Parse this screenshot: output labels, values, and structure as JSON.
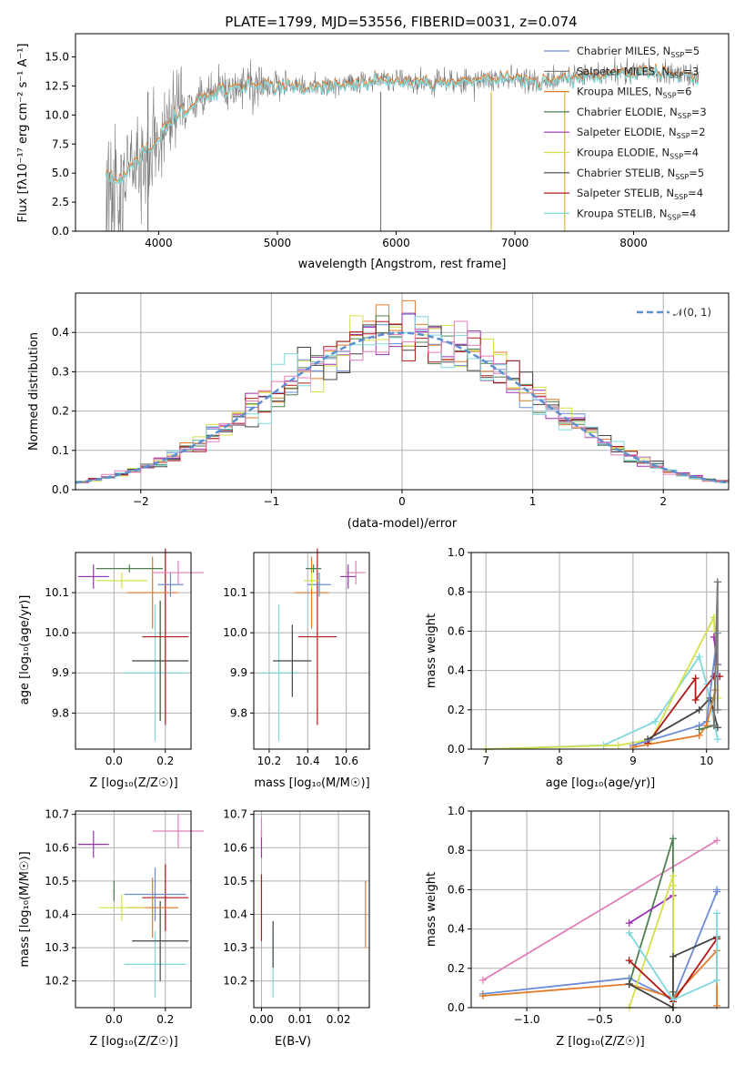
{
  "colors": {
    "chabrier_miles": "#6b8dd6",
    "salpeter_miles": "#7a7a7a",
    "kroupa_miles": "#e07b2a",
    "chabrier_elodie": "#4f7f4f",
    "salpeter_elodie": "#9b30b0",
    "kroupa_elodie": "#d4e04a",
    "chabrier_stelib": "#444444",
    "salpeter_stelib": "#b01818",
    "kroupa_stelib": "#7fd8dc",
    "pink": "#e07fb8"
  },
  "chart_data": [
    {
      "type": "line",
      "title": "PLATE=1799, MJD=53556, FIBERID=0031, z=0.074",
      "xlabel": "wavelength [Angstrom, rest frame]",
      "ylabel": "Flux [fλ10⁻¹⁷ erg cm⁻² s⁻¹ A⁻¹]",
      "xlim": [
        3300,
        8800
      ],
      "ylim": [
        0,
        17
      ],
      "xticks": [
        "4000",
        "5000",
        "6000",
        "7000",
        "8000"
      ],
      "yticks": [
        "0.0",
        "2.5",
        "5.0",
        "7.5",
        "10.0",
        "12.5",
        "15.0"
      ],
      "grid": false,
      "legend_position": "top-right",
      "legend": [
        "Chabrier MILES, N_SSP=5",
        "Salpeter MILES, N_SSP=3",
        "Kroupa MILES, N_SSP=6",
        "Chabrier ELODIE, N_SSP=3",
        "Salpeter ELODIE, N_SSP=2",
        "Kroupa ELODIE, N_SSP=4",
        "Chabrier STELIB, N_SSP=5",
        "Salpeter STELIB, N_SSP=4",
        "Kroupa STELIB, N_SSP=4"
      ],
      "spectrum_continuum": [
        [
          3550,
          5.0
        ],
        [
          3650,
          4.5
        ],
        [
          3750,
          5.5
        ],
        [
          3850,
          6.5
        ],
        [
          3950,
          7.5
        ],
        [
          4050,
          9.0
        ],
        [
          4150,
          10.0
        ],
        [
          4250,
          10.5
        ],
        [
          4350,
          11.5
        ],
        [
          4500,
          12.0
        ],
        [
          4700,
          12.5
        ],
        [
          5000,
          12.6
        ],
        [
          5200,
          12.3
        ],
        [
          5500,
          12.7
        ],
        [
          5800,
          12.8
        ],
        [
          6000,
          13.0
        ],
        [
          6300,
          12.8
        ],
        [
          6600,
          13.0
        ],
        [
          6900,
          13.2
        ],
        [
          7200,
          13.0
        ],
        [
          7500,
          13.2
        ],
        [
          7800,
          13.6
        ],
        [
          8100,
          13.8
        ],
        [
          8400,
          13.5
        ],
        [
          8550,
          13.2
        ]
      ]
    },
    {
      "type": "histogram",
      "xlabel": "(data-model)/error",
      "ylabel": "Normed distribution",
      "xlim": [
        -2.5,
        2.5
      ],
      "ylim": [
        0,
        0.5
      ],
      "xticks": [
        "−2",
        "−1",
        "0",
        "1",
        "2"
      ],
      "yticks": [
        "0.0",
        "0.1",
        "0.2",
        "0.3",
        "0.4"
      ],
      "grid": true,
      "legend_position": "top-right",
      "reference_label": "𝒩(0, 1)",
      "bin_width": 0.1
    },
    {
      "type": "scatter",
      "xlabel": "Z [log₁₀(Z/Z☉)]",
      "ylabel": "age  [log₁₀(age/yr)]",
      "xlim": [
        -0.15,
        0.3
      ],
      "ylim": [
        9.71,
        10.2
      ],
      "xticks": [
        "0.0",
        "0.2"
      ],
      "yticks": [
        "9.8",
        "9.9",
        "10.0",
        "10.1"
      ],
      "grid": true,
      "points": [
        {
          "color": "kroupa_stelib",
          "x": 0.16,
          "y": 9.9,
          "xerr": 0.12,
          "yerr": 0.17
        },
        {
          "color": "chabrier_stelib",
          "x": 0.18,
          "y": 9.93,
          "xerr": 0.11,
          "yerr": 0.15
        },
        {
          "color": "salpeter_stelib",
          "x": 0.2,
          "y": 9.99,
          "xerr": 0.09,
          "yerr": 0.22
        },
        {
          "color": "kroupa_miles",
          "x": 0.15,
          "y": 10.1,
          "xerr": 0.1,
          "yerr": 0.09
        },
        {
          "color": "chabrier_miles",
          "x": 0.22,
          "y": 10.12,
          "xerr": 0.05,
          "yerr": 0.03
        },
        {
          "color": "pink",
          "x": 0.25,
          "y": 10.15,
          "xerr": 0.1,
          "yerr": 0.03
        },
        {
          "color": "chabrier_elodie",
          "x": 0.06,
          "y": 10.16,
          "xerr": 0.13,
          "yerr": 0.01
        },
        {
          "color": "kroupa_elodie",
          "x": 0.03,
          "y": 10.13,
          "xerr": 0.1,
          "yerr": 0.02
        },
        {
          "color": "salpeter_elodie",
          "x": -0.08,
          "y": 10.14,
          "xerr": 0.06,
          "yerr": 0.03
        }
      ]
    },
    {
      "type": "scatter",
      "xlabel": "mass [log₁₀(M/M☉)]",
      "xlim": [
        10.12,
        10.72
      ],
      "ylim": [
        9.71,
        10.2
      ],
      "xticks": [
        "10.2",
        "10.4",
        "10.6"
      ],
      "yticks": [
        "9.8",
        "9.9",
        "10.0",
        "10.1"
      ],
      "grid": true,
      "points": [
        {
          "color": "kroupa_stelib",
          "x": 10.25,
          "y": 9.9,
          "xerr": 0.1,
          "yerr": 0.17
        },
        {
          "color": "chabrier_stelib",
          "x": 10.32,
          "y": 9.93,
          "xerr": 0.1,
          "yerr": 0.09
        },
        {
          "color": "salpeter_stelib",
          "x": 10.45,
          "y": 9.99,
          "xerr": 0.1,
          "yerr": 0.22
        },
        {
          "color": "kroupa_miles",
          "x": 10.42,
          "y": 10.1,
          "xerr": 0.09,
          "yerr": 0.09
        },
        {
          "color": "chabrier_miles",
          "x": 10.46,
          "y": 10.12,
          "xerr": 0.06,
          "yerr": 0.03
        },
        {
          "color": "pink",
          "x": 10.65,
          "y": 10.15,
          "xerr": 0.05,
          "yerr": 0.03
        },
        {
          "color": "chabrier_elodie",
          "x": 10.43,
          "y": 10.16,
          "xerr": 0.04,
          "yerr": 0.01
        },
        {
          "color": "kroupa_elodie",
          "x": 10.42,
          "y": 10.13,
          "xerr": 0.04,
          "yerr": 0.02
        },
        {
          "color": "salpeter_elodie",
          "x": 10.61,
          "y": 10.14,
          "xerr": 0.04,
          "yerr": 0.03
        }
      ]
    },
    {
      "type": "line",
      "xlabel": "age  [log₁₀(age/yr)]",
      "ylabel": "mass weight",
      "xlim": [
        6.8,
        10.3
      ],
      "ylim": [
        0,
        1.0
      ],
      "xticks": [
        "7",
        "8",
        "9",
        "10"
      ],
      "yticks": [
        "0.0",
        "0.2",
        "0.4",
        "0.6",
        "0.8",
        "1.0"
      ],
      "grid": true,
      "series": [
        {
          "color": "kroupa_stelib",
          "x": [
            7.0,
            8.6,
            9.3,
            9.9,
            10.0,
            10.15
          ],
          "y": [
            0.0,
            0.02,
            0.14,
            0.47,
            0.33,
            0.05
          ]
        },
        {
          "color": "kroupa_elodie",
          "x": [
            7.0,
            8.8,
            9.25,
            10.1,
            10.15
          ],
          "y": [
            0.0,
            0.02,
            0.05,
            0.67,
            0.26
          ]
        },
        {
          "color": "salpeter_stelib",
          "x": [
            9.2,
            9.85,
            9.85,
            10.1,
            10.18
          ],
          "y": [
            0.03,
            0.36,
            0.25,
            0.37,
            0.37
          ]
        },
        {
          "color": "chabrier_stelib",
          "x": [
            9.2,
            9.9,
            10.05,
            10.15
          ],
          "y": [
            0.05,
            0.2,
            0.26,
            0.11
          ]
        },
        {
          "color": "chabrier_miles",
          "x": [
            9.0,
            9.9,
            10.0,
            10.15
          ],
          "y": [
            0.02,
            0.12,
            0.14,
            0.59
          ]
        },
        {
          "color": "kroupa_miles",
          "x": [
            9.0,
            9.9,
            10.0,
            10.12
          ],
          "y": [
            0.01,
            0.07,
            0.12,
            0.3
          ]
        },
        {
          "color": "chabrier_elodie",
          "x": [
            9.9,
            10.1,
            10.15
          ],
          "y": [
            0.1,
            0.12,
            0.85
          ]
        },
        {
          "color": "salpeter_elodie",
          "x": [
            10.1,
            10.15
          ],
          "y": [
            0.57,
            0.43
          ]
        },
        {
          "color": "salpeter_miles",
          "x": [
            10.1,
            10.15,
            10.15
          ],
          "y": [
            0.12,
            0.85,
            0.2
          ]
        }
      ]
    },
    {
      "type": "scatter",
      "xlabel": "Z [log₁₀(Z/Z☉)]",
      "ylabel": "mass [log₁₀(M/M☉)]",
      "xlim": [
        -0.15,
        0.3
      ],
      "ylim": [
        10.12,
        10.71
      ],
      "xticks": [
        "0.0",
        "0.2"
      ],
      "yticks": [
        "10.2",
        "10.3",
        "10.4",
        "10.5",
        "10.6",
        "10.7"
      ],
      "grid": true,
      "points": [
        {
          "color": "kroupa_stelib",
          "x": 0.16,
          "y": 10.25,
          "xerr": 0.12,
          "yerr": 0.1
        },
        {
          "color": "chabrier_stelib",
          "x": 0.18,
          "y": 10.32,
          "xerr": 0.11,
          "yerr": 0.12
        },
        {
          "color": "salpeter_stelib",
          "x": 0.2,
          "y": 10.45,
          "xerr": 0.09,
          "yerr": 0.1
        },
        {
          "color": "kroupa_miles",
          "x": 0.15,
          "y": 10.42,
          "xerr": 0.1,
          "yerr": 0.09
        },
        {
          "color": "chabrier_miles",
          "x": 0.16,
          "y": 10.46,
          "xerr": 0.12,
          "yerr": 0.08
        },
        {
          "color": "pink",
          "x": 0.25,
          "y": 10.65,
          "xerr": 0.1,
          "yerr": 0.05
        },
        {
          "color": "chabrier_elodie",
          "x": 0.0,
          "y": 10.47,
          "xerr": 0.003,
          "yerr": 0.03
        },
        {
          "color": "kroupa_elodie",
          "x": 0.03,
          "y": 10.42,
          "xerr": 0.09,
          "yerr": 0.04
        },
        {
          "color": "salpeter_elodie",
          "x": -0.08,
          "y": 10.61,
          "xerr": 0.06,
          "yerr": 0.04
        }
      ]
    },
    {
      "type": "scatter",
      "xlabel": "E(B-V)",
      "xlim": [
        -0.002,
        0.028
      ],
      "ylim": [
        10.12,
        10.71
      ],
      "xticks": [
        "0.00",
        "0.01",
        "0.02"
      ],
      "yticks": [
        "10.2",
        "10.3",
        "10.4",
        "10.5",
        "10.6",
        "10.7"
      ],
      "grid": true,
      "points": [
        {
          "color": "kroupa_stelib",
          "x": 0.003,
          "y": 10.25,
          "xerr": 0.0,
          "yerr": 0.1
        },
        {
          "color": "chabrier_stelib",
          "x": 0.003,
          "y": 10.31,
          "xerr": 0.0,
          "yerr": 0.07
        },
        {
          "color": "salpeter_stelib",
          "x": 0.0,
          "y": 10.42,
          "xerr": 0.0,
          "yerr": 0.1
        },
        {
          "color": "kroupa_miles",
          "x": 0.027,
          "y": 10.4,
          "xerr": 0.0,
          "yerr": 0.1
        },
        {
          "color": "salpeter_elodie",
          "x": 0.0,
          "y": 10.61,
          "xerr": 0.0,
          "yerr": 0.04
        },
        {
          "color": "pink",
          "x": 0.0,
          "y": 10.66,
          "xerr": 0.0,
          "yerr": 0.03
        }
      ]
    },
    {
      "type": "line",
      "xlabel": "Z [log₁₀(Z/Z☉)]",
      "ylabel": "mass weight",
      "xlim": [
        -1.38,
        0.38
      ],
      "ylim": [
        0,
        1.0
      ],
      "xticks": [
        "−1.0",
        "−0.5",
        "0.0"
      ],
      "yticks": [
        "0.0",
        "0.2",
        "0.4",
        "0.6",
        "0.8",
        "1.0"
      ],
      "grid": true,
      "series": [
        {
          "color": "pink",
          "x": [
            -1.3,
            0.3
          ],
          "y": [
            0.14,
            0.85
          ]
        },
        {
          "color": "chabrier_miles",
          "x": [
            -1.3,
            -0.3,
            0.0,
            0.3,
            0.3
          ],
          "y": [
            0.07,
            0.15,
            0.04,
            0.59,
            0.6
          ]
        },
        {
          "color": "kroupa_miles",
          "x": [
            -1.3,
            -0.3,
            0.0,
            0.3,
            0.3
          ],
          "y": [
            0.06,
            0.12,
            0.05,
            0.29,
            0.01
          ]
        },
        {
          "color": "chabrier_elodie",
          "x": [
            -0.3,
            0.0,
            0.0
          ],
          "y": [
            0.12,
            0.86,
            0.08
          ]
        },
        {
          "color": "salpeter_elodie",
          "x": [
            -0.3,
            0.0
          ],
          "y": [
            0.43,
            0.57
          ]
        },
        {
          "color": "kroupa_elodie",
          "x": [
            -0.3,
            0.0,
            0.0,
            0.0
          ],
          "y": [
            0.0,
            0.67,
            0.62,
            0.0
          ]
        },
        {
          "color": "chabrier_stelib",
          "x": [
            -0.3,
            0.0,
            0.0,
            0.3
          ],
          "y": [
            0.12,
            0.0,
            0.26,
            0.36
          ]
        },
        {
          "color": "salpeter_stelib",
          "x": [
            -0.3,
            0.0,
            0.3
          ],
          "y": [
            0.24,
            0.03,
            0.35
          ]
        },
        {
          "color": "kroupa_stelib",
          "x": [
            -0.3,
            0.0,
            0.3,
            0.3
          ],
          "y": [
            0.38,
            0.04,
            0.14,
            0.48
          ]
        }
      ]
    }
  ]
}
